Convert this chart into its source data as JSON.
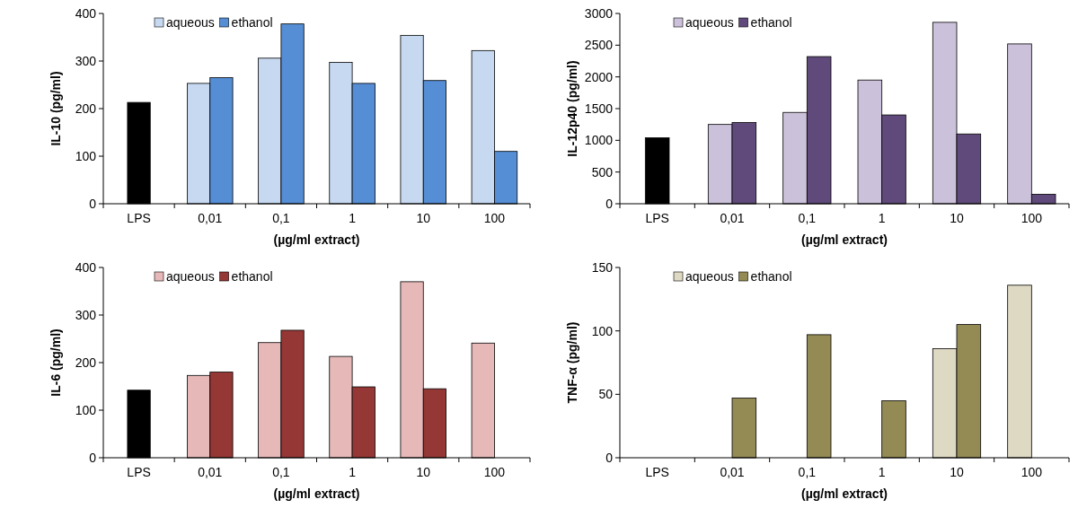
{
  "chart_data": [
    {
      "type": "bar",
      "ylabel": "IL-10 (pg/ml)",
      "xlabel": "(µg/ml extract)",
      "categories": [
        "LPS",
        "0,01",
        "0,1",
        "1",
        "10",
        "100"
      ],
      "ylim": [
        0,
        400
      ],
      "yticks": [
        0,
        100,
        200,
        300,
        400
      ],
      "grid": false,
      "legend": "top",
      "series": [
        {
          "color": "#000000",
          "values": [
            213,
            null,
            null,
            null,
            null,
            null
          ]
        },
        {
          "name": "aqueous",
          "color": "#c6d9f1",
          "values": [
            null,
            253,
            306,
            297,
            354,
            322
          ]
        },
        {
          "name": "ethanol",
          "color": "#558ed5",
          "values": [
            null,
            265,
            378,
            253,
            259,
            110
          ]
        }
      ]
    },
    {
      "type": "bar",
      "ylabel": "IL-12p40 (pg/ml)",
      "xlabel": "(µg/ml extract)",
      "categories": [
        "LPS",
        "0,01",
        "0,1",
        "1",
        "10",
        "100"
      ],
      "ylim": [
        0,
        3000
      ],
      "yticks": [
        0,
        500,
        1000,
        1500,
        2000,
        2500,
        3000
      ],
      "grid": false,
      "legend": "top",
      "series": [
        {
          "color": "#000000",
          "values": [
            1040,
            null,
            null,
            null,
            null,
            null
          ]
        },
        {
          "name": "aqueous",
          "color": "#ccc1da",
          "values": [
            null,
            1250,
            1440,
            1950,
            2860,
            2520
          ]
        },
        {
          "name": "ethanol",
          "color": "#604a7b",
          "values": [
            null,
            1280,
            2320,
            1400,
            1100,
            150
          ]
        }
      ]
    },
    {
      "type": "bar",
      "ylabel": "IL-6 (pg/ml)",
      "xlabel": "(µg/ml extract)",
      "categories": [
        "LPS",
        "0,01",
        "0,1",
        "1",
        "10",
        "100"
      ],
      "ylim": [
        0,
        400
      ],
      "yticks": [
        0,
        100,
        200,
        300,
        400
      ],
      "grid": false,
      "legend": "top",
      "series": [
        {
          "color": "#000000",
          "values": [
            142,
            null,
            null,
            null,
            null,
            null
          ]
        },
        {
          "name": "aqueous",
          "color": "#e6b9b8",
          "values": [
            null,
            173,
            242,
            213,
            370,
            241
          ]
        },
        {
          "name": "ethanol",
          "color": "#953735",
          "values": [
            null,
            180,
            268,
            149,
            145,
            0
          ]
        }
      ]
    },
    {
      "type": "bar",
      "ylabel": "TNF-α (pg/ml)",
      "xlabel": "(µg/ml extract)",
      "categories": [
        "LPS",
        "0,01",
        "0,1",
        "1",
        "10",
        "100"
      ],
      "ylim": [
        0,
        150
      ],
      "yticks": [
        0,
        50,
        100,
        150
      ],
      "grid": false,
      "legend": "top",
      "series": [
        {
          "color": "#000000",
          "values": [
            0,
            null,
            null,
            null,
            null,
            null
          ]
        },
        {
          "name": "aqueous",
          "color": "#ddd9c3",
          "values": [
            null,
            0,
            0,
            0,
            86,
            136
          ]
        },
        {
          "name": "ethanol",
          "color": "#948a54",
          "values": [
            null,
            47,
            97,
            45,
            105,
            0
          ]
        }
      ]
    }
  ]
}
